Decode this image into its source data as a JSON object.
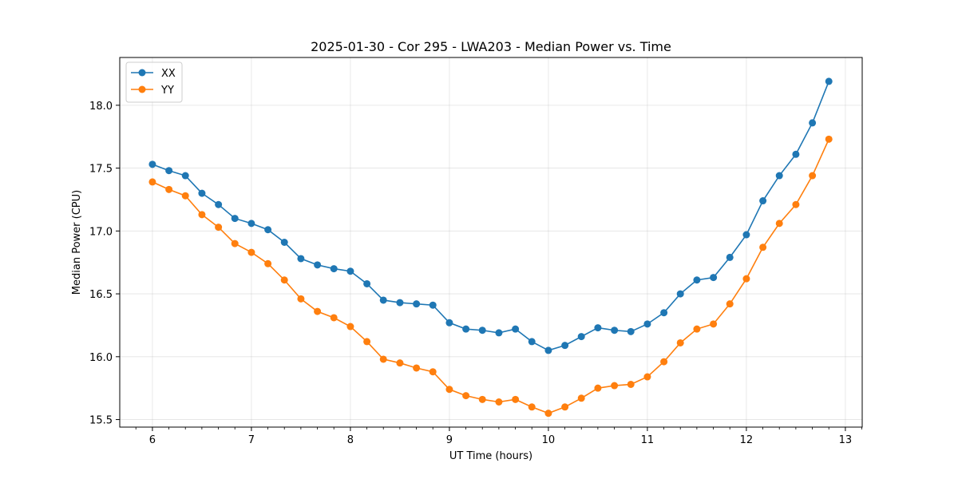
{
  "chart_data": {
    "type": "line",
    "title": "2025-01-30 - Cor 295 - LWA203 - Median Power vs. Time",
    "xlabel": "UT Time (hours)",
    "ylabel": "Median Power (CPU)",
    "xlim": [
      5.67,
      13.17
    ],
    "ylim": [
      15.44,
      18.38
    ],
    "xticks": [
      6,
      7,
      8,
      9,
      10,
      11,
      12,
      13
    ],
    "xtick_labels": [
      "6",
      "7",
      "8",
      "9",
      "10",
      "11",
      "12",
      "13"
    ],
    "yticks": [
      15.5,
      16.0,
      16.5,
      17.0,
      17.5,
      18.0
    ],
    "ytick_labels": [
      "15.5",
      "16.0",
      "16.5",
      "17.0",
      "17.5",
      "18.0"
    ],
    "grid": true,
    "legend_position": "top-left",
    "x": [
      6.0,
      6.167,
      6.333,
      6.5,
      6.667,
      6.833,
      7.0,
      7.167,
      7.333,
      7.5,
      7.667,
      7.833,
      8.0,
      8.167,
      8.333,
      8.5,
      8.667,
      8.833,
      9.0,
      9.167,
      9.333,
      9.5,
      9.667,
      9.833,
      10.0,
      10.167,
      10.333,
      10.5,
      10.667,
      10.833,
      11.0,
      11.167,
      11.333,
      11.5,
      11.667,
      11.833,
      12.0,
      12.167,
      12.333,
      12.5,
      12.667,
      12.833
    ],
    "series": [
      {
        "name": "XX",
        "color": "#1f77b4",
        "values": [
          17.53,
          17.48,
          17.44,
          17.3,
          17.21,
          17.1,
          17.06,
          17.01,
          16.91,
          16.78,
          16.73,
          16.7,
          16.68,
          16.58,
          16.45,
          16.43,
          16.42,
          16.41,
          16.27,
          16.22,
          16.21,
          16.19,
          16.22,
          16.12,
          16.05,
          16.09,
          16.16,
          16.23,
          16.21,
          16.2,
          16.26,
          16.35,
          16.5,
          16.61,
          16.63,
          16.79,
          16.97,
          17.24,
          17.44,
          17.61,
          17.86,
          18.19
        ]
      },
      {
        "name": "YY",
        "color": "#ff7f0e",
        "values": [
          17.39,
          17.33,
          17.28,
          17.13,
          17.03,
          16.9,
          16.83,
          16.74,
          16.61,
          16.46,
          16.36,
          16.31,
          16.24,
          16.12,
          15.98,
          15.95,
          15.91,
          15.88,
          15.74,
          15.69,
          15.66,
          15.64,
          15.66,
          15.6,
          15.55,
          15.6,
          15.67,
          15.75,
          15.77,
          15.78,
          15.84,
          15.96,
          16.11,
          16.22,
          16.26,
          16.42,
          16.62,
          16.87,
          17.06,
          17.21,
          17.44,
          17.73
        ]
      }
    ]
  }
}
